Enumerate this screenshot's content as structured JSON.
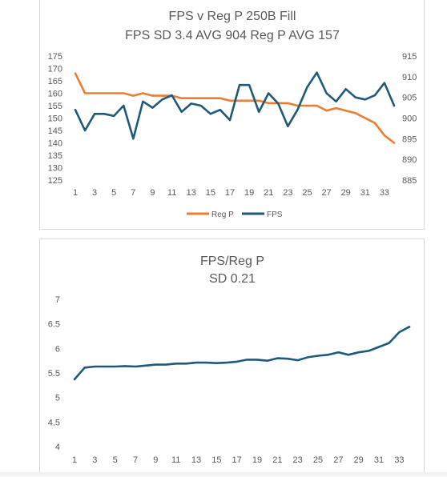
{
  "chart_data": [
    {
      "type": "line",
      "title": "FPS v Reg P 250B Fill",
      "subtitle": "FPS SD 3.4  AVG 904  Reg P AVG 157",
      "x": [
        1,
        2,
        3,
        4,
        5,
        6,
        7,
        8,
        9,
        10,
        11,
        12,
        13,
        14,
        15,
        16,
        17,
        18,
        19,
        20,
        21,
        22,
        23,
        24,
        25,
        26,
        27,
        28,
        29,
        30,
        31,
        32,
        33,
        34
      ],
      "x_tick_labels": [
        "1",
        "3",
        "5",
        "7",
        "9",
        "11",
        "13",
        "15",
        "17",
        "19",
        "21",
        "23",
        "25",
        "27",
        "29",
        "31",
        "33"
      ],
      "y_left_tick_labels": [
        "125",
        "130",
        "135",
        "140",
        "145",
        "150",
        "155",
        "160",
        "165",
        "170",
        "175"
      ],
      "y_right_tick_labels": [
        "885",
        "890",
        "895",
        "900",
        "905",
        "910",
        "915"
      ],
      "ylim_left": [
        125,
        175
      ],
      "ylim_right": [
        885,
        915
      ],
      "grid": false,
      "legend_position": "bottom",
      "series": [
        {
          "name": "Reg P",
          "axis": "left",
          "color": "#ed7d31",
          "values": [
            168,
            160,
            160,
            160,
            160,
            160,
            159,
            160,
            159,
            159,
            159,
            158,
            158,
            158,
            158,
            158,
            157,
            157,
            157,
            157,
            156,
            156,
            156,
            155,
            155,
            155,
            153,
            154,
            153,
            152,
            150,
            148,
            143,
            140
          ]
        },
        {
          "name": "FPS",
          "axis": "right",
          "color": "#1f5a7a",
          "values": [
            902,
            897,
            901,
            901,
            900.5,
            903,
            895,
            904,
            902.5,
            904.5,
            905.5,
            901.5,
            903.5,
            903,
            901,
            902,
            899.5,
            908,
            908,
            901.5,
            906,
            903.5,
            898,
            902,
            907.5,
            911,
            906,
            904,
            907,
            905,
            904.5,
            905.5,
            908.5,
            903
          ]
        }
      ]
    },
    {
      "type": "line",
      "title": "FPS/Reg P",
      "subtitle": "SD 0.21",
      "x": [
        1,
        2,
        3,
        4,
        5,
        6,
        7,
        8,
        9,
        10,
        11,
        12,
        13,
        14,
        15,
        16,
        17,
        18,
        19,
        20,
        21,
        22,
        23,
        24,
        25,
        26,
        27,
        28,
        29,
        30,
        31,
        32,
        33,
        34
      ],
      "x_tick_labels": [
        "1",
        "3",
        "5",
        "7",
        "9",
        "11",
        "13",
        "15",
        "17",
        "19",
        "21",
        "23",
        "25",
        "27",
        "29",
        "31",
        "33"
      ],
      "y_tick_labels": [
        "4",
        "4.5",
        "5",
        "5.5",
        "6",
        "6.5",
        "7"
      ],
      "ylim": [
        4,
        7
      ],
      "grid": false,
      "legend_position": "none",
      "series": [
        {
          "color": "#1f5a7a",
          "values": [
            5.37,
            5.61,
            5.63,
            5.63,
            5.63,
            5.64,
            5.63,
            5.65,
            5.67,
            5.67,
            5.69,
            5.69,
            5.71,
            5.71,
            5.7,
            5.71,
            5.73,
            5.77,
            5.77,
            5.75,
            5.8,
            5.79,
            5.76,
            5.82,
            5.85,
            5.87,
            5.92,
            5.87,
            5.92,
            5.95,
            6.03,
            6.11,
            6.33,
            6.44
          ]
        }
      ]
    }
  ]
}
